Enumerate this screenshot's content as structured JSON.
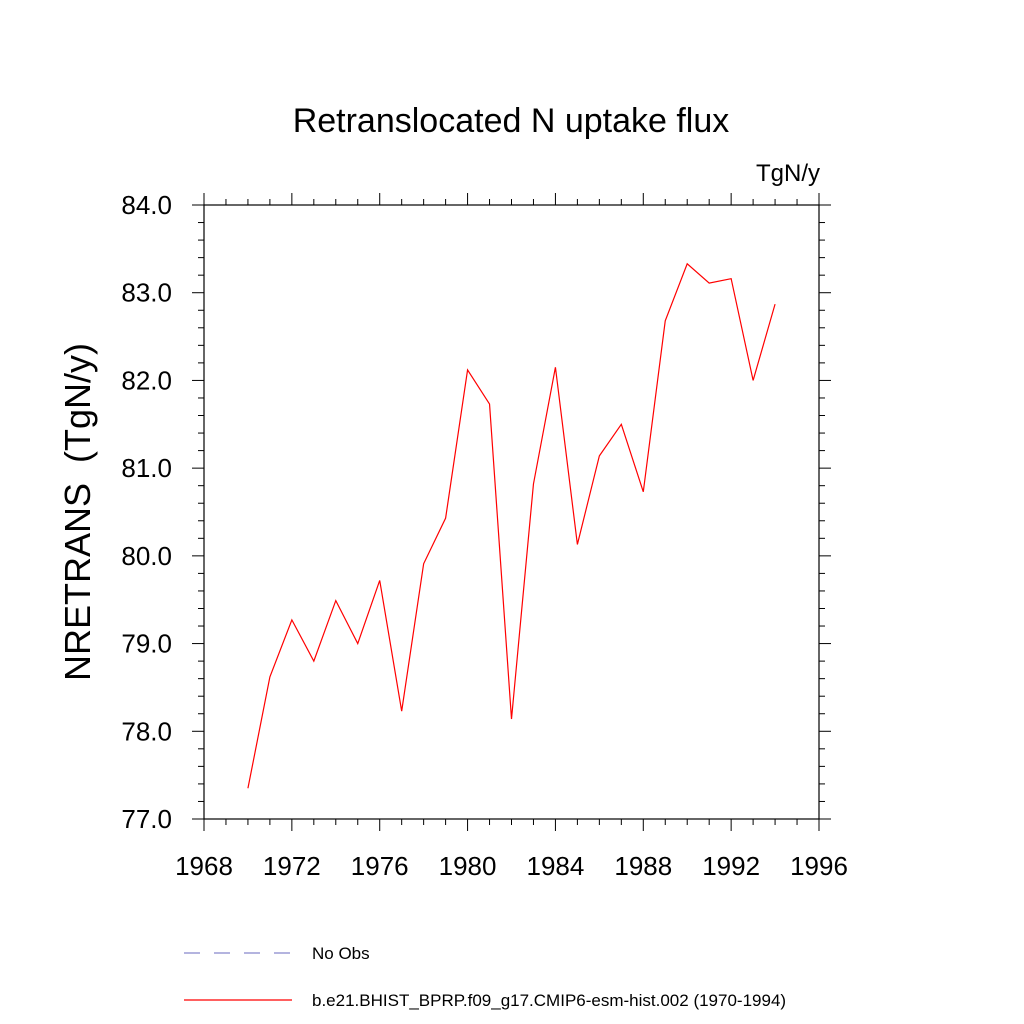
{
  "chart_data": {
    "type": "line",
    "title": "Retranslocated N uptake flux",
    "units_label": "TgN/y",
    "ylabel": "NRETRANS  (TgN/y)",
    "xlabel": "",
    "xlim": [
      1968,
      1996
    ],
    "ylim": [
      77.0,
      84.0
    ],
    "x_ticks": [
      1968,
      1972,
      1976,
      1980,
      1984,
      1988,
      1992,
      1996
    ],
    "y_ticks": [
      "77.0",
      "78.0",
      "79.0",
      "80.0",
      "81.0",
      "82.0",
      "83.0",
      "84.0"
    ],
    "grid": false,
    "series": [
      {
        "name": "b.e21.BHIST_BPRP.f09_g17.CMIP6-esm-hist.002 (1970-1994)",
        "color": "#ff0000",
        "x": [
          1970,
          1971,
          1972,
          1973,
          1974,
          1975,
          1976,
          1977,
          1978,
          1979,
          1980,
          1981,
          1982,
          1983,
          1984,
          1985,
          1986,
          1987,
          1988,
          1989,
          1990,
          1991,
          1992,
          1993,
          1994
        ],
        "y": [
          77.35,
          78.62,
          79.27,
          78.8,
          79.49,
          79.0,
          79.72,
          78.23,
          79.91,
          80.43,
          82.12,
          81.73,
          78.14,
          80.82,
          82.15,
          80.13,
          81.14,
          81.5,
          80.73,
          82.68,
          83.33,
          83.11,
          83.16,
          82.0,
          82.87
        ]
      }
    ],
    "legend": {
      "placement": "bottom",
      "entries": [
        {
          "label": "No Obs",
          "color": "#8888cc",
          "style": "dashed"
        },
        {
          "label": "b.e21.BHIST_BPRP.f09_g17.CMIP6-esm-hist.002 (1970-1994)",
          "color": "#ff0000",
          "style": "solid"
        }
      ]
    }
  }
}
